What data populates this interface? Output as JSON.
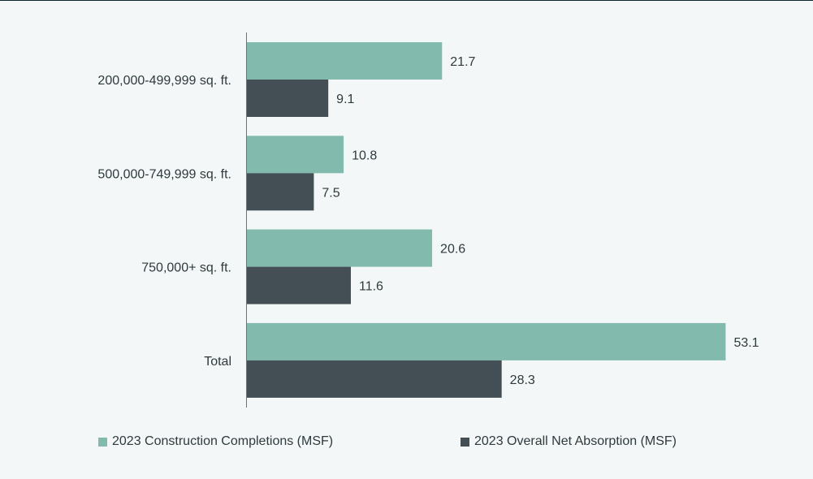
{
  "chart_data": {
    "type": "bar",
    "orientation": "horizontal",
    "categories": [
      "200,000-499,999 sq. ft.",
      "500,000-749,999 sq. ft.",
      "750,000+ sq. ft.",
      "Total"
    ],
    "series": [
      {
        "name": "2023 Construction Completions (MSF)",
        "color": "#82bbad",
        "values": [
          21.7,
          10.8,
          20.6,
          53.1
        ]
      },
      {
        "name": "2023 Overall Net Absorption (MSF)",
        "color": "#434f54",
        "values": [
          9.1,
          7.5,
          11.6,
          28.3
        ]
      }
    ],
    "xlim": [
      0,
      53.6
    ],
    "legend_position": "bottom",
    "grid": false
  }
}
